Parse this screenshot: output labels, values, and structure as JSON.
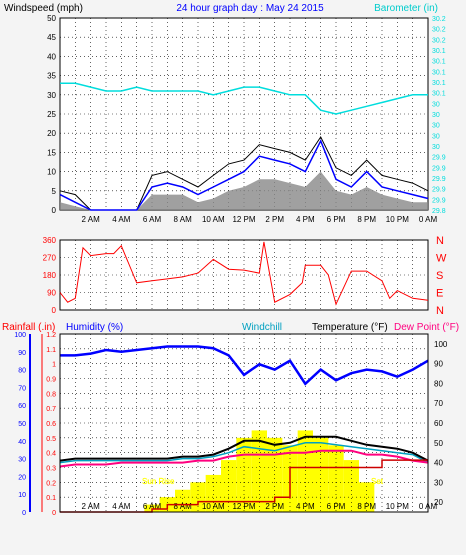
{
  "header": {
    "left": "Windspeed (mph)",
    "center": "24 hour graph day : May 24 2015",
    "right": "Barometer (in)"
  },
  "colors": {
    "black": "#000000",
    "blue": "#0000ff",
    "cyan": "#00dddd",
    "red": "#ff0000",
    "magenta": "#ff007f",
    "yellow": "#ffff00",
    "gray": "#888888",
    "darkred": "#cc0000",
    "windchill": "#00a0c0"
  },
  "x_tick_labels": [
    "2 AM",
    "4 AM",
    "6 AM",
    "8 AM",
    "10 AM",
    "12 PM",
    "2 PM",
    "4 PM",
    "6 PM",
    "8 PM",
    "10 PM",
    "0 AM"
  ],
  "chart_data": [
    {
      "type": "line",
      "title": "24 hour graph day : May 24 2015",
      "ylabel": "Windspeed (mph)",
      "y2label": "Barometer (in)",
      "ylim": [
        0,
        50
      ],
      "y2lim": [
        29.8,
        30.3
      ],
      "y_ticks": [
        "0",
        "5",
        "10",
        "15",
        "20",
        "25",
        "30",
        "35",
        "40",
        "45",
        "50"
      ],
      "y2_ticks": [
        "29.8",
        "29.9",
        "29.9",
        "29.9",
        "29.9",
        "29.9",
        "30",
        "30",
        "30",
        "30",
        "30",
        "30.1",
        "30.1",
        "30.1",
        "30.1",
        "30.1",
        "30.2",
        "30.2",
        "30.2"
      ],
      "x": [
        0,
        1,
        2,
        3,
        4,
        5,
        6,
        7,
        8,
        9,
        10,
        11,
        12,
        13,
        14,
        15,
        16,
        17,
        18,
        19,
        20,
        21,
        22,
        23,
        24
      ],
      "series": [
        {
          "name": "Windspeed (mph)",
          "values": [
            4,
            2,
            0,
            0,
            0,
            0,
            6,
            7,
            6,
            4,
            6,
            8,
            10,
            14,
            13,
            12,
            10,
            18,
            8,
            6,
            10,
            6,
            5,
            4,
            3
          ]
        },
        {
          "name": "Barometer (in)",
          "values": [
            30.13,
            30.13,
            30.12,
            30.11,
            30.11,
            30.12,
            30.11,
            30.11,
            30.11,
            30.11,
            30.1,
            30.11,
            30.12,
            30.12,
            30.11,
            30.1,
            30.1,
            30.06,
            30.05,
            30.06,
            30.07,
            30.08,
            30.09,
            30.1,
            30.1
          ]
        }
      ],
      "gust_values": [
        5,
        4,
        0,
        0,
        0,
        0,
        9,
        10,
        8,
        6,
        9,
        12,
        13,
        17,
        16,
        15,
        13,
        19,
        11,
        9,
        13,
        9,
        8,
        7,
        5
      ],
      "avg_values": [
        2,
        1,
        0,
        0,
        0,
        0,
        4,
        4,
        4,
        2,
        3,
        5,
        6,
        8,
        8,
        7,
        6,
        10,
        5,
        4,
        6,
        4,
        3,
        2,
        2
      ]
    },
    {
      "type": "line",
      "ylabel_ticks": [
        "360",
        "270",
        "180",
        "90",
        "0"
      ],
      "y2_ticks": [
        "N",
        "W",
        "S",
        "E",
        "N"
      ],
      "ylim": [
        0,
        360
      ],
      "x": [
        0,
        0.5,
        1,
        1.5,
        2,
        3,
        3.5,
        4,
        5,
        6,
        7,
        8,
        9,
        10,
        11,
        12,
        13,
        13.3,
        14,
        15,
        15.8,
        16,
        17,
        17.5,
        18,
        19,
        20,
        21,
        21.5,
        22,
        23,
        24
      ],
      "series": [
        {
          "name": "Wind direction",
          "values": [
            90,
            40,
            60,
            320,
            280,
            290,
            290,
            330,
            140,
            150,
            160,
            170,
            190,
            260,
            210,
            205,
            190,
            350,
            40,
            80,
            140,
            230,
            230,
            180,
            30,
            200,
            200,
            150,
            60,
            100,
            60,
            50
          ]
        }
      ]
    },
    {
      "type": "line",
      "y_left1_label": "Rainfall (.in)",
      "y_left2_label": "Humidity (%)",
      "windchill_label": "Windchill",
      "temp_label": "Temperature (°F)",
      "dew_label": "Dew Point (°F)",
      "rain_ticks": [
        "0",
        "0.1",
        "0.2",
        "0.3",
        "0.4",
        "0.5",
        "0.6",
        "0.7",
        "0.8",
        "0.9",
        "1",
        "1.1",
        "1.2"
      ],
      "humidity_ticks": [
        "0",
        "10",
        "20",
        "30",
        "40",
        "50",
        "60",
        "70",
        "80",
        "90",
        "100"
      ],
      "temp_ticks": [
        "20",
        "30",
        "40",
        "50",
        "60",
        "70",
        "80",
        "90",
        "100"
      ],
      "rain_ylim": [
        0,
        1.2
      ],
      "humidity_ylim": [
        0,
        100
      ],
      "temp_ylim": [
        15,
        105
      ],
      "annotations": [
        "Sun Rise",
        "Set"
      ],
      "x": [
        0,
        1,
        2,
        3,
        4,
        5,
        6,
        7,
        8,
        9,
        10,
        11,
        12,
        13,
        14,
        15,
        16,
        17,
        18,
        19,
        20,
        21,
        22,
        23,
        24
      ],
      "series": [
        {
          "name": "Humidity (%)",
          "values": [
            88,
            88,
            89,
            91,
            90,
            91,
            92,
            93,
            93,
            93,
            92,
            88,
            77,
            83,
            80,
            85,
            72,
            80,
            74,
            78,
            80,
            79,
            76,
            80,
            85
          ]
        },
        {
          "name": "Temperature (°F)",
          "values": [
            41,
            42,
            42,
            42,
            42,
            42,
            42,
            42,
            43,
            43,
            44,
            47,
            51,
            51,
            49,
            50,
            53,
            53,
            53,
            51,
            49,
            48,
            47,
            45,
            41
          ]
        },
        {
          "name": "Dew Point (°F)",
          "values": [
            38,
            39,
            39,
            39,
            40,
            40,
            40,
            40,
            40,
            41,
            41,
            43,
            44,
            44,
            44,
            45,
            45,
            46,
            46,
            46,
            44,
            44,
            43,
            41,
            40
          ]
        },
        {
          "name": "Windchill",
          "values": [
            40,
            41,
            41,
            41,
            41,
            41,
            41,
            41,
            42,
            42,
            43,
            45,
            48,
            47,
            46,
            48,
            50,
            50,
            49,
            48,
            47,
            46,
            45,
            44,
            40
          ]
        },
        {
          "name": "Rainfall (.in)",
          "values": [
            0,
            0,
            0,
            0,
            0,
            0,
            0.02,
            0.05,
            0.05,
            0.07,
            0.07,
            0.07,
            0.07,
            0.07,
            0.1,
            0.3,
            0.3,
            0.3,
            0.3,
            0.3,
            0.3,
            0.35,
            0.35,
            0.35,
            0.35
          ]
        }
      ],
      "solar_values": [
        0,
        0,
        0,
        0,
        0,
        0,
        0.05,
        0.1,
        0.15,
        0.2,
        0.25,
        0.35,
        0.5,
        0.55,
        0.5,
        0.45,
        0.55,
        0.5,
        0.45,
        0.35,
        0.2,
        0,
        0,
        0,
        0
      ]
    }
  ]
}
